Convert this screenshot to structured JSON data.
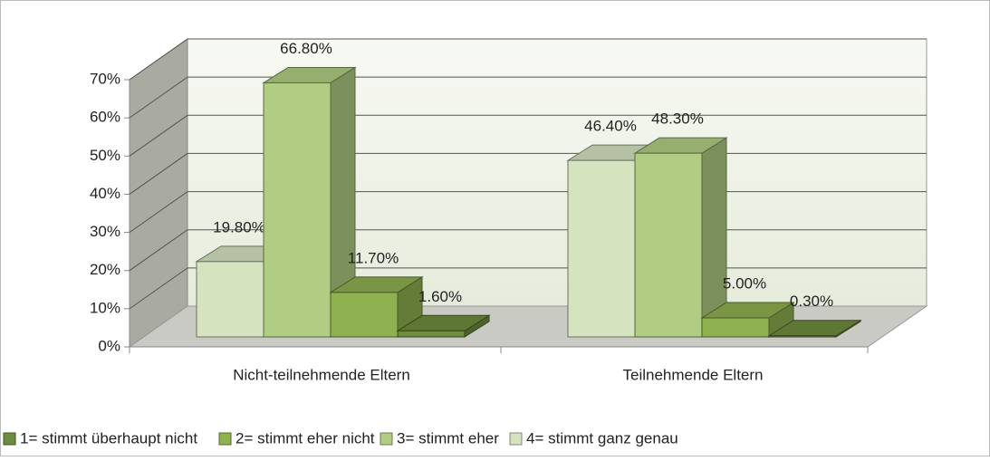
{
  "chart_data": {
    "type": "bar3d",
    "categories": [
      "Nicht-teilnehmende Eltern",
      "Teilnehmende Eltern"
    ],
    "series": [
      {
        "name": "1= stimmt überhaupt nicht",
        "color": "#6e8c3e",
        "values": [
          1.6,
          0.3
        ],
        "value_labels": [
          "1.60%",
          "0.30%"
        ]
      },
      {
        "name": "2= stimmt eher nicht",
        "color": "#8fb150",
        "values": [
          11.7,
          5.0
        ],
        "value_labels": [
          "11.70%",
          "5.00%"
        ]
      },
      {
        "name": "3= stimmt eher",
        "color": "#b1cd84",
        "values": [
          66.8,
          48.3
        ],
        "value_labels": [
          "66.80%",
          "48.30%"
        ]
      },
      {
        "name": "4= stimmt ganz genau",
        "color": "#d5e3bf",
        "values": [
          19.8,
          46.4
        ],
        "value_labels": [
          "19.80%",
          "46.40%"
        ]
      }
    ],
    "ylim": [
      0,
      70
    ],
    "yticks": [
      {
        "value": 0,
        "label": "0%"
      },
      {
        "value": 10,
        "label": "10%"
      },
      {
        "value": 20,
        "label": "20%"
      },
      {
        "value": 30,
        "label": "30%"
      },
      {
        "value": 40,
        "label": "40%"
      },
      {
        "value": 50,
        "label": "50%"
      },
      {
        "value": 60,
        "label": "60%"
      },
      {
        "value": 70,
        "label": "70%"
      }
    ],
    "grid": true,
    "legend": "bottom"
  }
}
